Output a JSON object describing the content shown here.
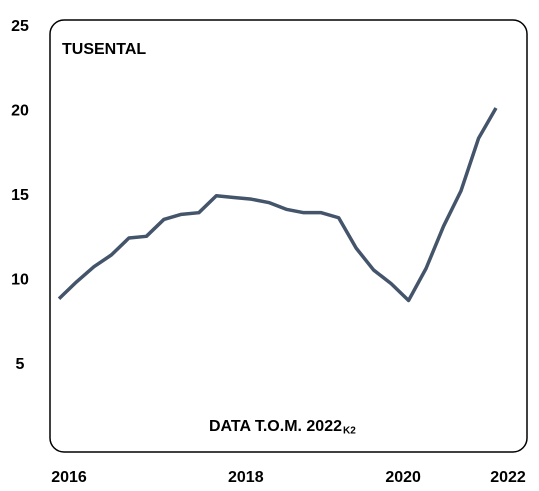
{
  "chart_data": {
    "type": "line",
    "unit_label": "TUSENTAL",
    "annotation": "DATA T.O.M. 2022",
    "annotation_sub": "K2",
    "categories": [
      "2016",
      null,
      null,
      null,
      null,
      null,
      null,
      null,
      null,
      null,
      "2018",
      null,
      null,
      null,
      null,
      null,
      null,
      null,
      null,
      "2020",
      null,
      null,
      null,
      null,
      null,
      "2022"
    ],
    "series": [
      {
        "color": "#44546a",
        "values": [
          8.9,
          9.9,
          10.8,
          11.5,
          12.5,
          12.6,
          13.6,
          13.9,
          14.0,
          15.0,
          14.9,
          14.8,
          14.6,
          14.2,
          14.0,
          14.0,
          13.7,
          11.9,
          10.6,
          9.8,
          8.8,
          10.7,
          13.2,
          15.3,
          18.4,
          20.2
        ]
      }
    ],
    "ylim": [
      0,
      25
    ],
    "yticks": [
      5,
      10,
      15,
      20,
      25
    ],
    "grid": false
  }
}
